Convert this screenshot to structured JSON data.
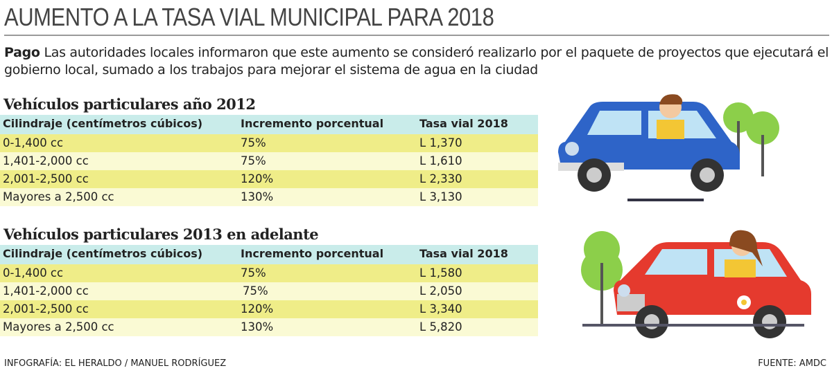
{
  "header": {
    "title": "AUMENTO A LA TASA VIAL MUNICIPAL PARA 2018"
  },
  "intro": {
    "label": "Pago",
    "text": "Las autoridades locales informaron que este aumento se consideró realizarlo por el paquete de proyectos que ejecutará el gobierno local, sumado a los trabajos para mejorar el sistema de agua en la ciudad"
  },
  "tables": [
    {
      "heading": "Vehículos particulares año 2012",
      "columns": [
        "Cilindraje (centímetros cúbicos)",
        "Incremento porcentual",
        "Tasa vial 2018"
      ],
      "rows": [
        [
          "0-1,400 cc",
          "75%",
          "L 1,370"
        ],
        [
          "1,401-2,000 cc",
          "75%",
          "L 1,610"
        ],
        [
          "2,001-2,500 cc",
          "120%",
          "L 2,330"
        ],
        [
          "Mayores a 2,500 cc",
          "130%",
          "L 3,130"
        ]
      ]
    },
    {
      "heading": "Vehículos  particulares  2013 en adelante",
      "columns": [
        "Cilindraje (centímetros cúbicos)",
        "Incremento porcentual",
        "Tasa vial 2018"
      ],
      "rows": [
        [
          "0-1,400 cc",
          "75%",
          "L 1,580"
        ],
        [
          "1,401-2,000 cc",
          "75%",
          "L 2,050"
        ],
        [
          "2,001-2,500 cc",
          "120%",
          "L 3,340"
        ],
        [
          "Mayores a 2,500 cc",
          "130%",
          "L 5,820"
        ]
      ]
    }
  ],
  "footer": {
    "credit": "INFOGRAFÍA: EL HERALDO / MANUEL RODRÍGUEZ",
    "source": "FUENTE: AMDC"
  }
}
